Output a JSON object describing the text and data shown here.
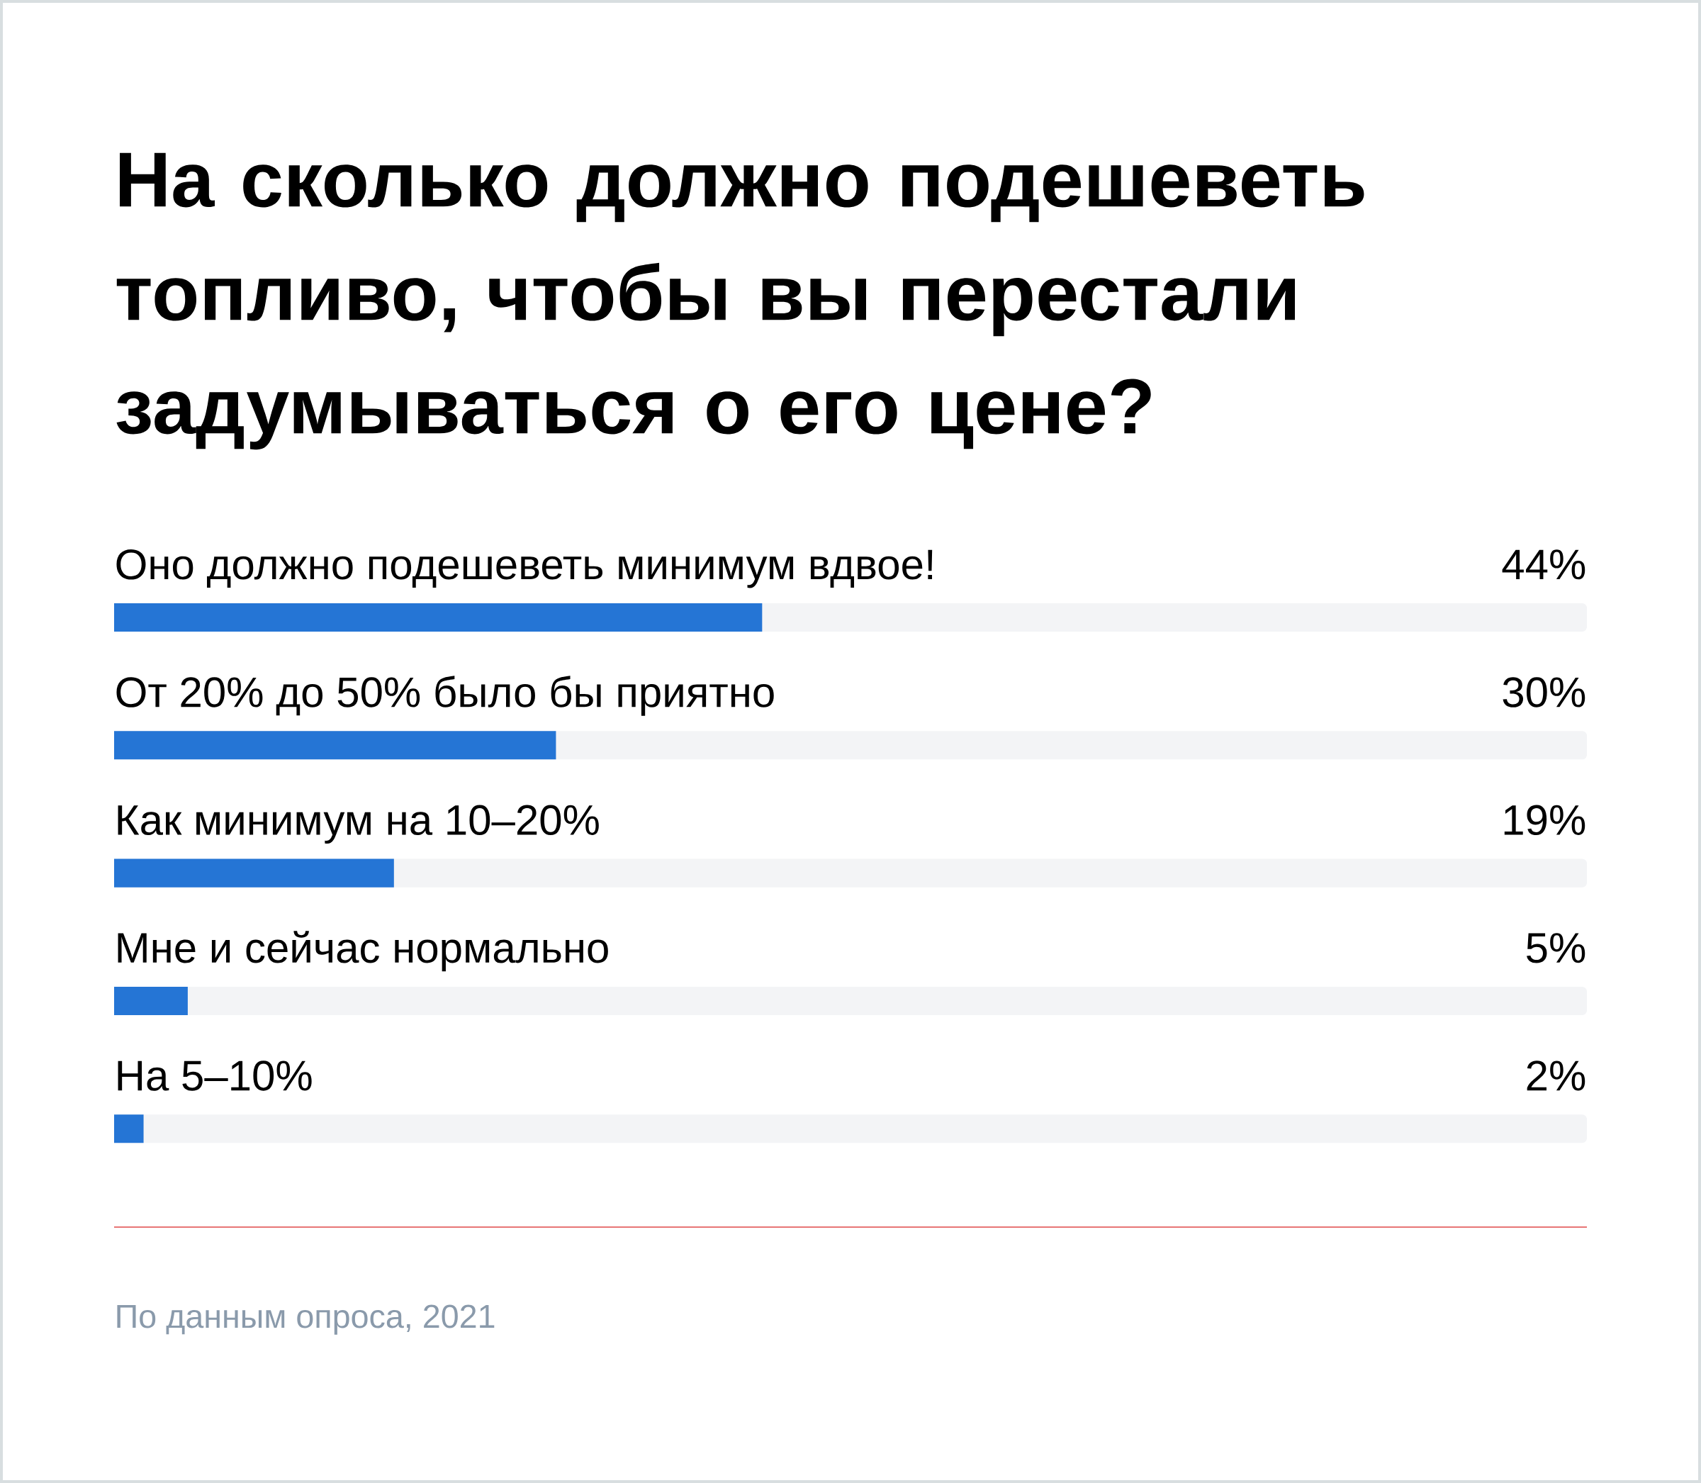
{
  "chart_data": {
    "type": "bar",
    "orientation": "horizontal",
    "title": "На сколько должно подешеветь топливо, чтобы вы перестали задумываться о его цене?",
    "categories": [
      "Оно должно подешеветь минимум вдвое!",
      "От 20% до 50% было бы приятно",
      "Как минимум на 10–20%",
      "Мне и сейчас нормально",
      "На 5–10%"
    ],
    "values": [
      44,
      30,
      19,
      5,
      2
    ],
    "value_labels": [
      "44%",
      "30%",
      "19%",
      "5%",
      "2%"
    ],
    "color": "#2575d5",
    "xlim": [
      0,
      100
    ],
    "annotations": [
      "По данным опроса, 2021"
    ]
  }
}
